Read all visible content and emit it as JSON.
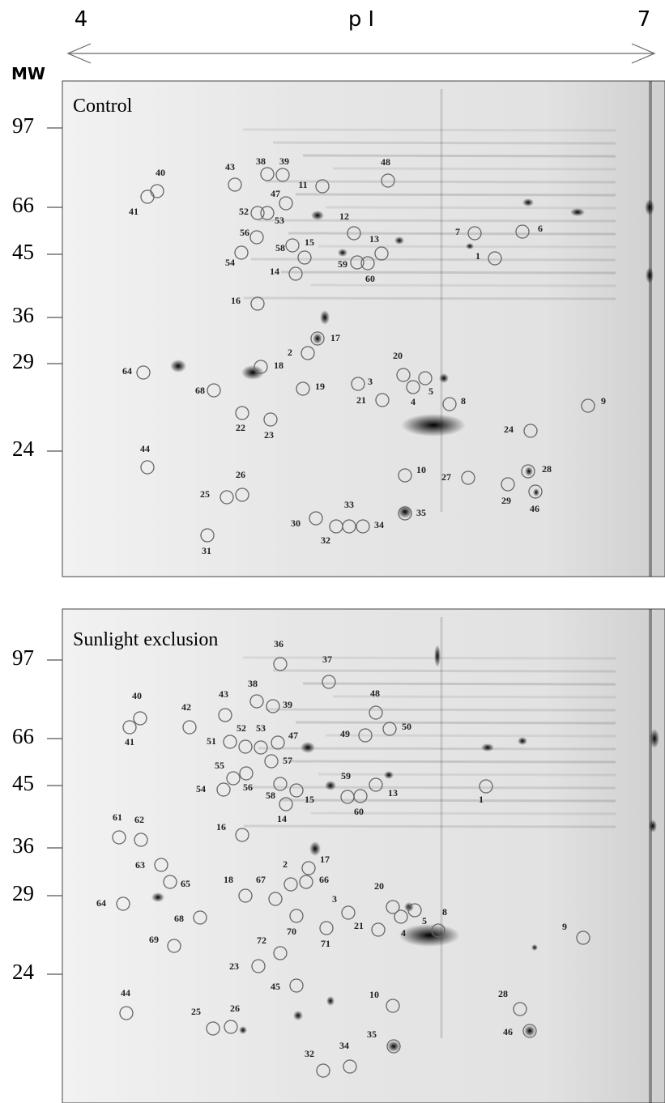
{
  "axis": {
    "left": "4",
    "label": "pI",
    "right": "7"
  },
  "mw_label": "MW",
  "panels": [
    {
      "title": "Control",
      "mw_ticks": [
        "97",
        "66",
        "45",
        "36",
        "29",
        "24"
      ],
      "spots": [
        "40",
        "41",
        "43",
        "38",
        "39",
        "48",
        "11",
        "47",
        "52",
        "53",
        "12",
        "7",
        "6",
        "56",
        "58",
        "15",
        "13",
        "54",
        "1",
        "59",
        "60",
        "14",
        "16",
        "17",
        "2",
        "20",
        "64",
        "18",
        "19",
        "3",
        "5",
        "68",
        "21",
        "4",
        "8",
        "9",
        "22",
        "23",
        "24",
        "44",
        "10",
        "27",
        "28",
        "26",
        "25",
        "29",
        "46",
        "33",
        "35",
        "30",
        "34",
        "32",
        "31"
      ]
    },
    {
      "title": "Sunlight exclusion",
      "mw_ticks": [
        "97",
        "66",
        "45",
        "36",
        "29",
        "24"
      ],
      "spots": [
        "36",
        "37",
        "40",
        "41",
        "42",
        "43",
        "38",
        "39",
        "48",
        "50",
        "49",
        "52",
        "53",
        "51",
        "47",
        "57",
        "55",
        "56",
        "54",
        "58",
        "15",
        "59",
        "13",
        "60",
        "1",
        "14",
        "61",
        "62",
        "16",
        "17",
        "2",
        "66",
        "63",
        "65",
        "18",
        "67",
        "20",
        "5",
        "8",
        "3",
        "64",
        "68",
        "70",
        "71",
        "21",
        "4",
        "9",
        "69",
        "72",
        "23",
        "45",
        "44",
        "10",
        "28",
        "25",
        "26",
        "46",
        "35",
        "32",
        "34"
      ]
    }
  ]
}
